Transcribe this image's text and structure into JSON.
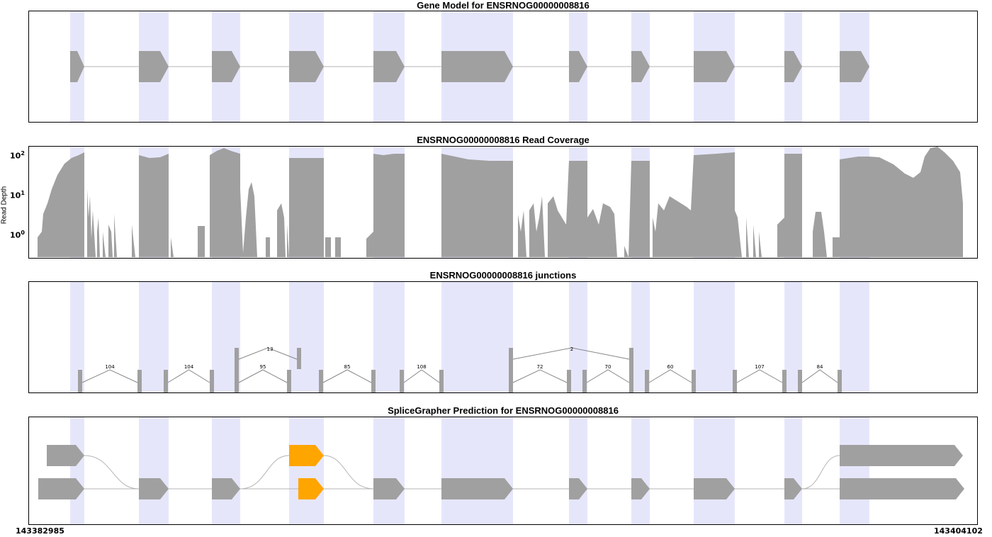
{
  "gene_id": "ENSRNOG00000008816",
  "colors": {
    "exon": "#a0a0a0",
    "highlight": "#e6e6fb",
    "intron_line": "#b4b4b4",
    "predicted_novel": "#ffa500",
    "axis": "#000000"
  },
  "panels": {
    "gene_model": {
      "title": "Gene Model for ENSRNOG00000008816"
    },
    "coverage": {
      "title": "ENSRNOG00000008816 Read Coverage",
      "ylabel": "Read Depth",
      "yticks": [
        {
          "base": "10",
          "exp": "2"
        },
        {
          "base": "10",
          "exp": "1"
        },
        {
          "base": "10",
          "exp": "0"
        }
      ],
      "scale": "log"
    },
    "junctions": {
      "title": "ENSRNOG00000008816 junctions",
      "counts": [
        "104",
        "104",
        "13",
        "95",
        "85",
        "108",
        "2",
        "72",
        "70",
        "60",
        "107",
        "84"
      ]
    },
    "prediction": {
      "title": "SpliceGrapher Prediction for ENSRNOG00000008816"
    }
  },
  "axis": {
    "start": "143382985",
    "end": "143404102"
  }
}
